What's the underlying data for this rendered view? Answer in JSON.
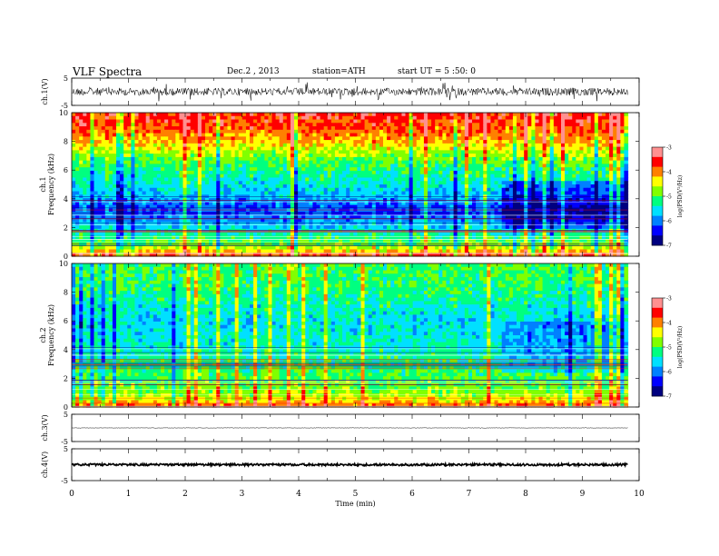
{
  "header": {
    "title": "VLF  Spectra",
    "date": "Dec.2 , 2013",
    "station": "station=ATH",
    "start": "start  UT  =   5  :50: 0"
  },
  "chart_data": {
    "type": "heatmap",
    "x_axis": {
      "label": "Time  (min)",
      "range": [
        0,
        10
      ],
      "ticks": [
        "0",
        "1",
        "2",
        "3",
        "4",
        "5",
        "6",
        "7",
        "8",
        "9",
        "10"
      ]
    },
    "data_end_min": 9.8,
    "panels": [
      {
        "id": "ch1-waveform",
        "kind": "waveform",
        "ylabel": "ch.1(V)",
        "yrange": [
          -5,
          5
        ],
        "yticks": [
          "5",
          "-5"
        ],
        "amplitude": 1.4,
        "spike": 3.5,
        "spike_rate": 0.05
      },
      {
        "id": "ch1-spectrogram",
        "kind": "spectrogram",
        "ylabel_top": "ch.1",
        "ylabel": "Frequency  (kHz)",
        "yrange": [
          0,
          10
        ],
        "yticks": [
          "0",
          "2",
          "4",
          "6",
          "8",
          "10"
        ],
        "colorbar": {
          "label": "log(PSD(V²/Hz)",
          "range": [
            -7,
            -3
          ],
          "ticks": [
            "-3",
            "-4",
            "-5",
            "-6",
            "-7"
          ]
        },
        "profile": [
          [
            0,
            0.86
          ],
          [
            0.5,
            0.62
          ],
          [
            1.0,
            0.5
          ],
          [
            1.5,
            0.42
          ],
          [
            2.0,
            0.35
          ],
          [
            2.5,
            0.28
          ],
          [
            3.0,
            0.2
          ],
          [
            3.5,
            0.22
          ],
          [
            4.0,
            0.3
          ],
          [
            5.0,
            0.38
          ],
          [
            6.0,
            0.45
          ],
          [
            7.0,
            0.56
          ],
          [
            8.0,
            0.7
          ],
          [
            9.0,
            0.8
          ],
          [
            10.0,
            0.86
          ]
        ],
        "quiet_after_min": 7.55,
        "quiet_band_khz": [
          1.8,
          5.2
        ],
        "quiet_delta": -0.15
      },
      {
        "id": "ch2-spectrogram",
        "kind": "spectrogram",
        "ylabel_top": "ch.2",
        "ylabel": "Frequency  (kHz)",
        "yrange": [
          0,
          10
        ],
        "yticks": [
          "0",
          "2",
          "4",
          "6",
          "8",
          "10"
        ],
        "colorbar": {
          "label": "log(PSD(V²/Hz)",
          "range": [
            -7,
            -3
          ],
          "ticks": [
            "-3",
            "-4",
            "-5",
            "-6",
            "-7"
          ]
        },
        "profile": [
          [
            0,
            0.8
          ],
          [
            0.5,
            0.65
          ],
          [
            1.0,
            0.56
          ],
          [
            1.5,
            0.52
          ],
          [
            2.0,
            0.5
          ],
          [
            3.0,
            0.46
          ],
          [
            4.0,
            0.4
          ],
          [
            5.0,
            0.38
          ],
          [
            6.0,
            0.36
          ],
          [
            7.0,
            0.4
          ],
          [
            8.0,
            0.46
          ],
          [
            9.0,
            0.48
          ],
          [
            10.0,
            0.5
          ]
        ],
        "quiet_after_min": 7.55,
        "quiet_band_khz": [
          2.5,
          6.0
        ],
        "quiet_delta": -0.1
      },
      {
        "id": "ch3-waveform",
        "kind": "waveform",
        "ylabel": "ch.3(V)",
        "yrange": [
          -5,
          5
        ],
        "yticks": [
          "5",
          "-5"
        ],
        "amplitude": 0.08,
        "spike": 0.2,
        "spike_rate": 0.01
      },
      {
        "id": "ch4-waveform",
        "kind": "waveform",
        "ylabel": "ch.4(V)",
        "yrange": [
          -5,
          5
        ],
        "yticks": [
          "5",
          "-5"
        ],
        "amplitude": 0.35,
        "spike": 0.35,
        "spike_rate": 0.0
      }
    ],
    "colormap": [
      "#000080",
      "#0000ff",
      "#0080ff",
      "#00e0ff",
      "#00ff80",
      "#80ff00",
      "#ffff00",
      "#ff8000",
      "#ff0000",
      "#ff9090"
    ]
  }
}
